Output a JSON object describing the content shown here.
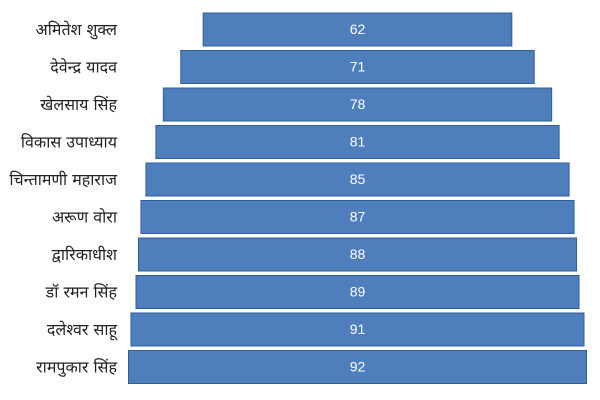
{
  "chart_data": {
    "type": "bar",
    "orientation": "horizontal",
    "layout": "centered",
    "categories": [
      "अमितेश शुक्ल",
      "देवेन्द्र यादव",
      "खेलसाय सिंह",
      "विकास उपाध्याय",
      "चिन्तामणी महाराज",
      "अरूण वोरा",
      "द्वारिकाधीश",
      "डॉ रमन सिंह",
      "दलेश्वर साहू",
      "रामपुकार सिंह"
    ],
    "values": [
      62,
      71,
      78,
      81,
      85,
      87,
      88,
      89,
      91,
      92
    ],
    "xlim": [
      0,
      92
    ],
    "grid": false,
    "legend": "none",
    "colors": {
      "bar": "#4f7ebc",
      "bar_border": "#2f5f9a",
      "value_text": "#ffffff",
      "category_text": "#222222"
    }
  }
}
